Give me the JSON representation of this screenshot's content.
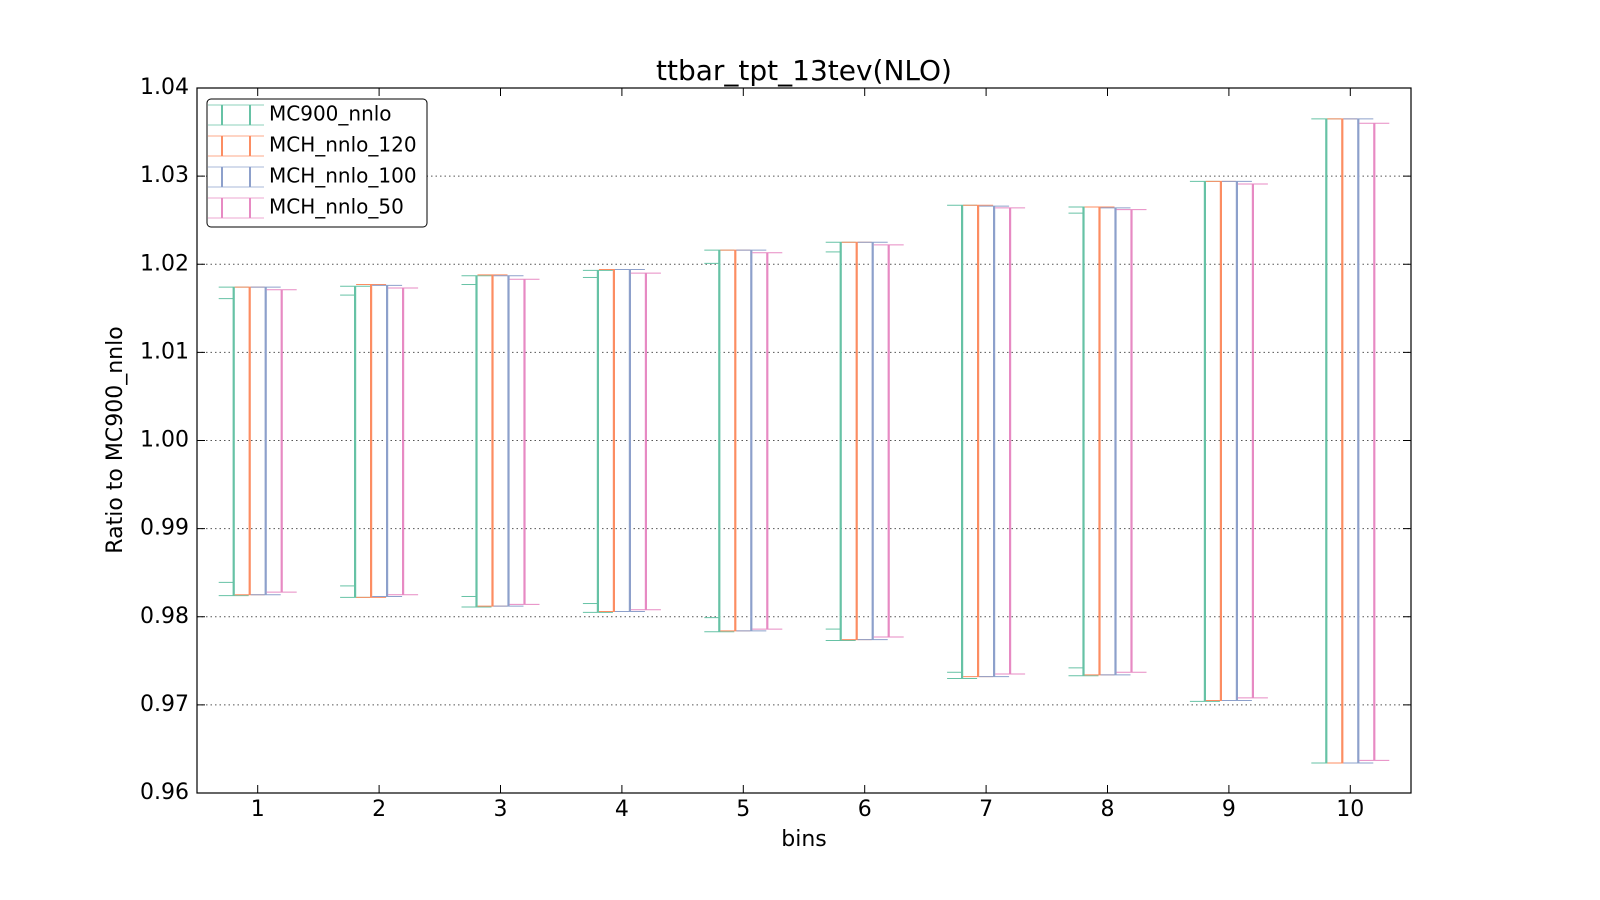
{
  "chart_data": {
    "type": "errorbar",
    "title": "ttbar_tpt_13tev(NLO)",
    "x_label": "bins",
    "y_label": "Ratio to MC900_nnlo",
    "x": [
      1,
      2,
      3,
      4,
      5,
      6,
      7,
      8,
      9,
      10
    ],
    "xlim": [
      0.5,
      10.5
    ],
    "xticks": [
      1,
      2,
      3,
      4,
      5,
      6,
      7,
      8,
      9,
      10
    ],
    "ylim": [
      0.96,
      1.04
    ],
    "yticks": [
      0.96,
      0.97,
      0.98,
      0.99,
      {
        "value": 1.0,
        "label": "1.00"
      },
      1.01,
      1.02,
      1.03,
      1.04
    ],
    "grid": true,
    "legend": "upper-left",
    "series": [
      {
        "name": "MC900_nnlo",
        "color": "#66c2a5",
        "upper": [
          1.0174,
          1.0175,
          1.0187,
          1.0193,
          1.0216,
          1.0225,
          1.0267,
          1.0265,
          1.0294,
          1.0365
        ],
        "lower": [
          0.9824,
          0.9822,
          0.9811,
          0.9805,
          0.9783,
          0.9773,
          0.973,
          0.9733,
          0.9704,
          0.9634
        ],
        "inner_upper": [
          1.0161,
          1.0165,
          1.0177,
          1.0185,
          1.0201,
          1.0214,
          null,
          1.0258,
          null,
          null
        ],
        "inner_lower": [
          0.9839,
          0.9835,
          0.9823,
          0.9815,
          0.9799,
          0.9786,
          0.9737,
          0.9742,
          null,
          null
        ]
      },
      {
        "name": "MCH_nnlo_120",
        "color": "#fc8d62",
        "upper": [
          1.0174,
          1.0177,
          1.0188,
          1.0194,
          1.0216,
          1.0225,
          1.0267,
          1.0265,
          1.0294,
          1.0365
        ],
        "lower": [
          0.9825,
          0.9822,
          0.9812,
          0.9806,
          0.9784,
          0.9774,
          0.9732,
          0.9734,
          0.9705,
          0.9634
        ]
      },
      {
        "name": "MCH_nnlo_100",
        "color": "#8da0cb",
        "upper": [
          1.0174,
          1.0176,
          1.0187,
          1.0194,
          1.0216,
          1.0225,
          1.0266,
          1.0264,
          1.0294,
          1.0365
        ],
        "lower": [
          0.9825,
          0.9823,
          0.9812,
          0.9806,
          0.9784,
          0.9774,
          0.9732,
          0.9734,
          0.9705,
          0.9634
        ]
      },
      {
        "name": "MCH_nnlo_50",
        "color": "#e78ac3",
        "upper": [
          1.0171,
          1.0173,
          1.0183,
          1.019,
          1.0213,
          1.0222,
          1.0264,
          1.0262,
          1.0291,
          1.036
        ],
        "lower": [
          0.9828,
          0.9825,
          0.9814,
          0.9808,
          0.9786,
          0.9777,
          0.9735,
          0.9737,
          0.9708,
          0.9637
        ]
      }
    ]
  }
}
